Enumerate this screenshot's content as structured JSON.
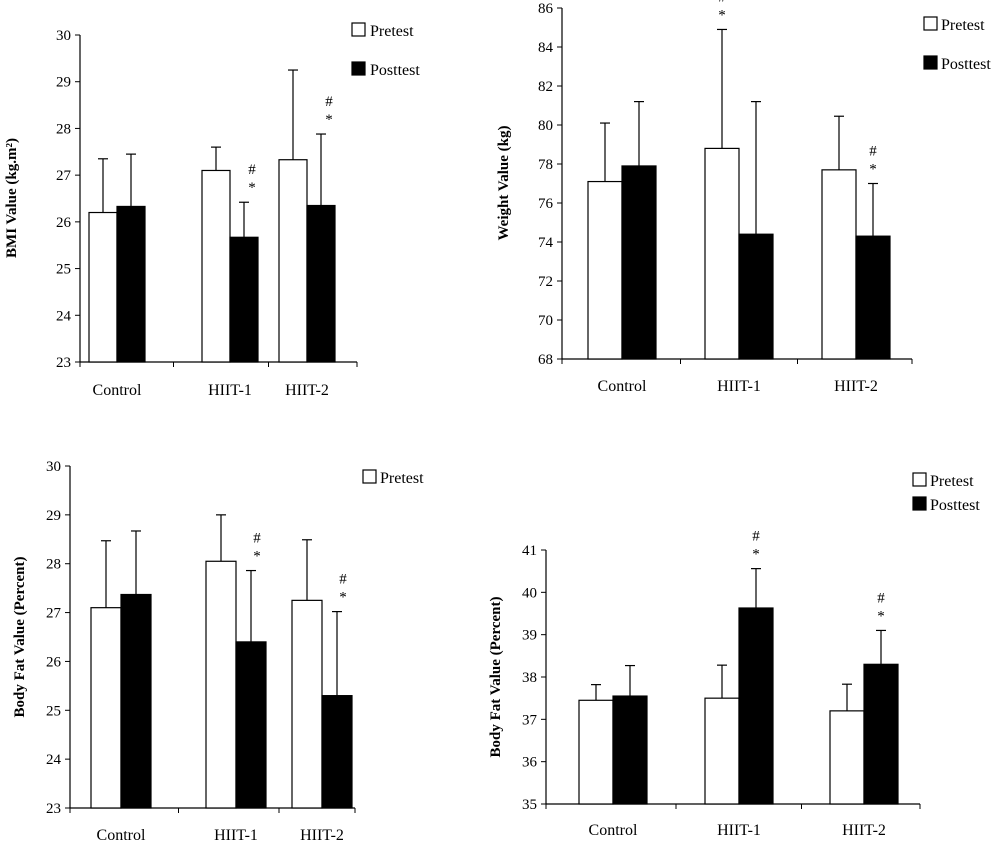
{
  "chart_data": [
    {
      "type": "bar",
      "categories": [
        "Control",
        "HIIT-1",
        "HIIT-2"
      ],
      "ylabel": "BMI Value (kg.m²)",
      "ylim": [
        23,
        30
      ],
      "yticks": [
        "23",
        "24",
        "25",
        "26",
        "27",
        "28",
        "29",
        "30"
      ],
      "series": [
        {
          "name": "Pretest",
          "values": [
            26.2,
            27.1,
            27.33
          ],
          "errors": [
            1.15,
            0.5,
            1.92
          ]
        },
        {
          "name": "Posttest",
          "values": [
            26.33,
            25.67,
            26.35
          ],
          "errors": [
            1.12,
            0.75,
            1.53
          ]
        }
      ],
      "annotations": [
        {
          "category": "HIIT-1",
          "series": "Posttest",
          "labels": [
            "#",
            "*"
          ]
        },
        {
          "category": "HIIT-2",
          "series": "Posttest",
          "labels": [
            "#",
            "*"
          ]
        }
      ],
      "legend": "top-right"
    },
    {
      "type": "bar",
      "categories": [
        "Control",
        "HIIT-1",
        "HIIT-2"
      ],
      "ylabel": "Weight Value (kg)",
      "ylim": [
        68,
        86
      ],
      "yticks": [
        "68",
        "70",
        "72",
        "74",
        "76",
        "78",
        "80",
        "82",
        "84",
        "86"
      ],
      "series": [
        {
          "name": "Pretest",
          "values": [
            77.1,
            78.8,
            77.7
          ],
          "errors": [
            3.0,
            6.1,
            2.75
          ]
        },
        {
          "name": "Posttest",
          "values": [
            77.9,
            74.4,
            74.3
          ],
          "errors": [
            3.3,
            6.8,
            2.7
          ]
        }
      ],
      "annotations": [
        {
          "category": "HIIT-1",
          "series": "Pretest",
          "labels": [
            "#",
            "*"
          ]
        },
        {
          "category": "HIIT-2",
          "series": "Posttest",
          "labels": [
            "#",
            "*"
          ]
        }
      ],
      "legend": "top-right"
    },
    {
      "type": "bar",
      "categories": [
        "Control",
        "HIIT-1",
        "HIIT-2"
      ],
      "ylabel": "Body Fat Value (Percent)",
      "ylim": [
        23,
        30
      ],
      "yticks": [
        "23",
        "24",
        "25",
        "26",
        "27",
        "28",
        "29",
        "30"
      ],
      "series": [
        {
          "name": "Pretest",
          "values": [
            27.1,
            28.05,
            27.25
          ],
          "errors": [
            1.37,
            0.95,
            1.24
          ]
        },
        {
          "name": "",
          "values": [
            27.37,
            26.4,
            25.3
          ],
          "errors": [
            1.3,
            1.46,
            1.72
          ]
        }
      ],
      "annotations": [
        {
          "category": "HIIT-1",
          "series": "Posttest",
          "labels": [
            "#",
            "*"
          ]
        },
        {
          "category": "HIIT-2",
          "series": "Posttest",
          "labels": [
            "#",
            "*"
          ]
        }
      ],
      "legend": "top-right"
    },
    {
      "type": "bar",
      "categories": [
        "Control",
        "HIIT-1",
        "HIIT-2"
      ],
      "ylabel": "Body Fat Value (Percent)",
      "ylim": [
        35,
        41
      ],
      "yticks": [
        "35",
        "36",
        "37",
        "38",
        "39",
        "40",
        "41"
      ],
      "series": [
        {
          "name": "Pretest",
          "values": [
            37.45,
            37.5,
            37.2
          ],
          "errors": [
            0.37,
            0.78,
            0.63
          ]
        },
        {
          "name": "Posttest",
          "values": [
            37.55,
            39.63,
            38.3
          ],
          "errors": [
            0.72,
            0.93,
            0.8
          ]
        }
      ],
      "annotations": [
        {
          "category": "HIIT-1",
          "series": "Posttest",
          "labels": [
            "#",
            "*"
          ]
        },
        {
          "category": "HIIT-2",
          "series": "Posttest",
          "labels": [
            "#",
            "*"
          ]
        }
      ],
      "legend": "top-right"
    }
  ]
}
